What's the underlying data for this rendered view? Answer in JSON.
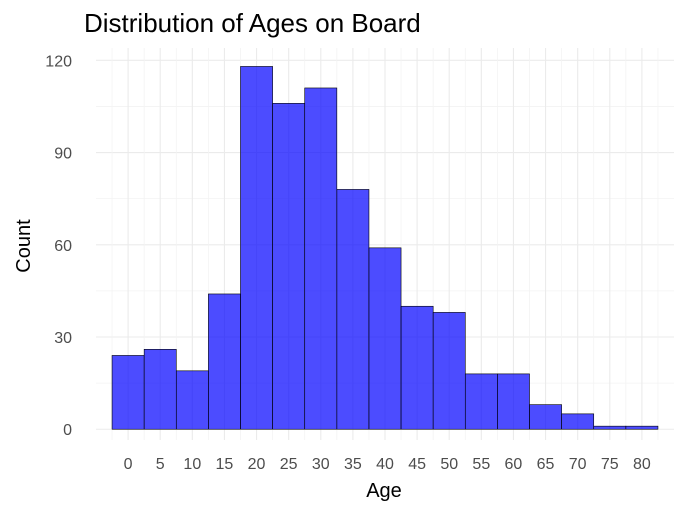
{
  "chart_data": {
    "type": "bar",
    "title": "Distribution of Ages on Board",
    "xlabel": "Age",
    "ylabel": "Count",
    "bin_width": 5,
    "bins": [
      {
        "start": -2.5,
        "end": 2.5,
        "count": 24
      },
      {
        "start": 2.5,
        "end": 7.5,
        "count": 26
      },
      {
        "start": 7.5,
        "end": 12.5,
        "count": 19
      },
      {
        "start": 12.5,
        "end": 17.5,
        "count": 44
      },
      {
        "start": 17.5,
        "end": 22.5,
        "count": 118
      },
      {
        "start": 22.5,
        "end": 27.5,
        "count": 106
      },
      {
        "start": 27.5,
        "end": 32.5,
        "count": 111
      },
      {
        "start": 32.5,
        "end": 37.5,
        "count": 78
      },
      {
        "start": 37.5,
        "end": 42.5,
        "count": 59
      },
      {
        "start": 42.5,
        "end": 47.5,
        "count": 40
      },
      {
        "start": 47.5,
        "end": 52.5,
        "count": 38
      },
      {
        "start": 52.5,
        "end": 57.5,
        "count": 18
      },
      {
        "start": 57.5,
        "end": 62.5,
        "count": 18
      },
      {
        "start": 62.5,
        "end": 67.5,
        "count": 8
      },
      {
        "start": 67.5,
        "end": 72.5,
        "count": 5
      },
      {
        "start": 72.5,
        "end": 77.5,
        "count": 1
      },
      {
        "start": 77.5,
        "end": 82.5,
        "count": 1
      }
    ],
    "xticks": [
      0,
      5,
      10,
      15,
      20,
      25,
      30,
      35,
      40,
      45,
      50,
      55,
      60,
      65,
      70,
      75,
      80
    ],
    "yticks": [
      0,
      30,
      60,
      90,
      120
    ],
    "xlim": [
      -5,
      85
    ],
    "ylim": [
      -3.5,
      124
    ],
    "grid": true,
    "bar_color": "#0000ff",
    "bar_outline": "#000000"
  }
}
